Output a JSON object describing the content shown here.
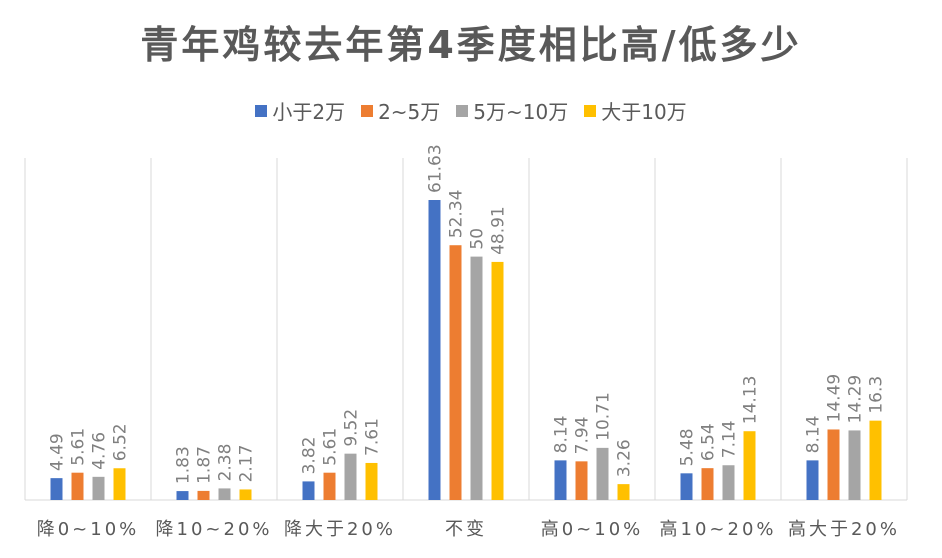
{
  "chart_data": {
    "type": "bar",
    "title": "青年鸡较去年第4季度相比高/低多少",
    "xlabel": "",
    "ylabel": "",
    "ylim": [
      0,
      70
    ],
    "grid": "vertical-separators",
    "legend_position": "top",
    "categories": [
      "降0~10%",
      "降10~20%",
      "降大于20%",
      "不变",
      "高0~10%",
      "高10~20%",
      "高大于20%"
    ],
    "series": [
      {
        "name": "小于2万",
        "color": "#4472C4",
        "values": [
          4.49,
          1.83,
          3.82,
          61.63,
          8.14,
          5.48,
          8.14
        ]
      },
      {
        "name": "2~5万",
        "color": "#ED7D31",
        "values": [
          5.61,
          1.87,
          5.61,
          52.34,
          7.94,
          6.54,
          14.49
        ]
      },
      {
        "name": "5万~10万",
        "color": "#A5A5A5",
        "values": [
          4.76,
          2.38,
          9.52,
          50,
          10.71,
          7.14,
          14.29
        ]
      },
      {
        "name": "大于10万",
        "color": "#FFC000",
        "values": [
          6.52,
          2.17,
          7.61,
          48.91,
          3.26,
          14.13,
          16.3
        ]
      }
    ]
  }
}
